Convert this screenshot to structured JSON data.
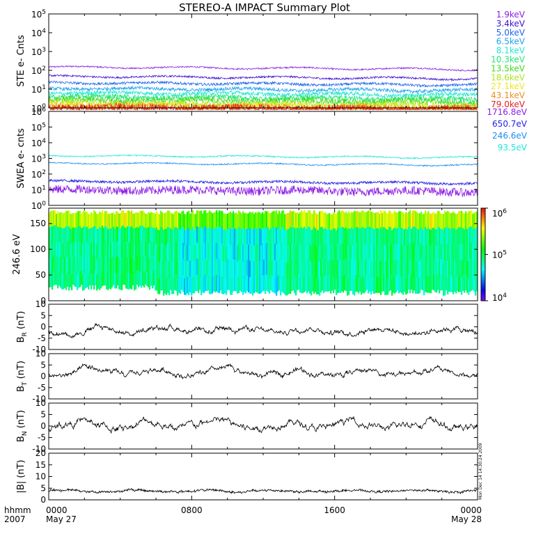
{
  "title": "STEREO-A IMPACT Summary Plot",
  "time_axis": {
    "left_labels": [
      "hhmm",
      "2007"
    ],
    "ticks": [
      {
        "hour": 0,
        "label": "0000",
        "sub": "May 27"
      },
      {
        "hour": 8,
        "label": "0800",
        "sub": ""
      },
      {
        "hour": 16,
        "label": "1600",
        "sub": ""
      },
      {
        "hour": 24,
        "label": "0000",
        "sub": "May 28"
      }
    ],
    "xlim_hours": [
      0,
      24
    ]
  },
  "stamp": "Mon Dec 14 14:30:24 2009",
  "colorbar": {
    "ticks": [
      {
        "base": "10",
        "exp": "6",
        "value": 1000000
      },
      {
        "base": "10",
        "exp": "5",
        "value": 100000
      },
      {
        "base": "10",
        "exp": "4",
        "value": 10000
      }
    ],
    "range": [
      10000,
      1000000
    ],
    "scale": "log"
  },
  "chart_data": [
    {
      "id": "ste",
      "type": "line",
      "ylabel": "STE e- Cnts",
      "yscale": "log",
      "ylim": [
        1,
        100000
      ],
      "yticks": [
        {
          "base": "10",
          "exp": "0",
          "value": 1
        },
        {
          "base": "10",
          "exp": "1",
          "value": 10
        },
        {
          "base": "10",
          "exp": "2",
          "value": 100
        },
        {
          "base": "10",
          "exp": "3",
          "value": 1000
        },
        {
          "base": "10",
          "exp": "4",
          "value": 10000
        },
        {
          "base": "10",
          "exp": "5",
          "value": 100000
        }
      ],
      "series": [
        {
          "name": "1.9keV",
          "color": "#8c1ee6",
          "level": 150,
          "noise": 0.04
        },
        {
          "name": "3.4keV",
          "color": "#3d0fd6",
          "level": 48,
          "noise": 0.05
        },
        {
          "name": "5.0keV",
          "color": "#1a64f0",
          "level": 22,
          "noise": 0.07
        },
        {
          "name": "6.5keV",
          "color": "#1ea0f0",
          "level": 11,
          "noise": 0.09
        },
        {
          "name": "8.1keV",
          "color": "#1ee6d2",
          "level": 6.5,
          "noise": 0.11
        },
        {
          "name": "10.3keV",
          "color": "#1ee67a",
          "level": 4.0,
          "noise": 0.14
        },
        {
          "name": "13.5keV",
          "color": "#3cdc1e",
          "level": 2.8,
          "noise": 0.16
        },
        {
          "name": "18.6keV",
          "color": "#aae61e",
          "level": 1.9,
          "noise": 0.18
        },
        {
          "name": "27.1keV",
          "color": "#f0e61e",
          "level": 1.4,
          "noise": 0.2
        },
        {
          "name": "43.1keV",
          "color": "#f08c1e",
          "level": 1.15,
          "noise": 0.22
        },
        {
          "name": "79.0keV",
          "color": "#e61e1e",
          "level": 1.05,
          "noise": 0.22
        }
      ]
    },
    {
      "id": "swea",
      "type": "line",
      "ylabel": "SWEA e- cnts",
      "yscale": "log",
      "ylim": [
        1,
        1000000
      ],
      "yticks": [
        {
          "base": "10",
          "exp": "0",
          "value": 1
        },
        {
          "base": "10",
          "exp": "1",
          "value": 10
        },
        {
          "base": "10",
          "exp": "2",
          "value": 100
        },
        {
          "base": "10",
          "exp": "3",
          "value": 1000
        },
        {
          "base": "10",
          "exp": "4",
          "value": 10000
        },
        {
          "base": "10",
          "exp": "5",
          "value": 100000
        },
        {
          "base": "10",
          "exp": "6",
          "value": 1000000
        }
      ],
      "series": [
        {
          "name": "1716.8eV",
          "color": "#8c1ee6",
          "level": 10,
          "noise": 0.28
        },
        {
          "name": "650.7eV",
          "color": "#1e1ee6",
          "level": 35,
          "noise": 0.08
        },
        {
          "name": "246.6eV",
          "color": "#1e8cf0",
          "level": 500,
          "noise": 0.04
        },
        {
          "name": "93.5eV",
          "color": "#1ee6dc",
          "level": 1500,
          "noise": 0.04
        }
      ]
    },
    {
      "id": "pad",
      "type": "heatmap",
      "ylabel": "246.6 eV",
      "ylim": [
        0,
        180
      ],
      "yticks": [
        0,
        50,
        100,
        150
      ],
      "zscale": "log",
      "zlim": [
        10000,
        1000000
      ]
    },
    {
      "id": "br",
      "type": "line",
      "ylabel_main": "B",
      "ylabel_sub": "R",
      "ylabel_unit": "(nT)",
      "ylim": [
        -10,
        10
      ],
      "yticks": [
        -10,
        -5,
        0,
        5,
        10
      ],
      "series": [
        {
          "mean": -1.5,
          "amp": 2.2,
          "color": "#000000"
        }
      ]
    },
    {
      "id": "bt",
      "type": "line",
      "ylabel_main": "B",
      "ylabel_sub": "T",
      "ylabel_unit": "(nT)",
      "ylim": [
        -10,
        10
      ],
      "yticks": [
        -10,
        -5,
        0,
        5,
        10
      ],
      "series": [
        {
          "mean": 1.5,
          "amp": 2.4,
          "color": "#000000"
        }
      ]
    },
    {
      "id": "bn",
      "type": "line",
      "ylabel_main": "B",
      "ylabel_sub": "N",
      "ylabel_unit": "(nT)",
      "ylim": [
        -10,
        10
      ],
      "yticks": [
        -10,
        -5,
        0,
        5,
        10
      ],
      "series": [
        {
          "mean": 0.5,
          "amp": 2.8,
          "color": "#000000"
        }
      ]
    },
    {
      "id": "bmag",
      "type": "line",
      "ylabel": "|B| (nT)",
      "ylim": [
        0,
        20
      ],
      "yticks": [
        0,
        5,
        10,
        15,
        20
      ],
      "series": [
        {
          "mean": 3.8,
          "amp": 0.6,
          "color": "#000000"
        }
      ]
    }
  ]
}
